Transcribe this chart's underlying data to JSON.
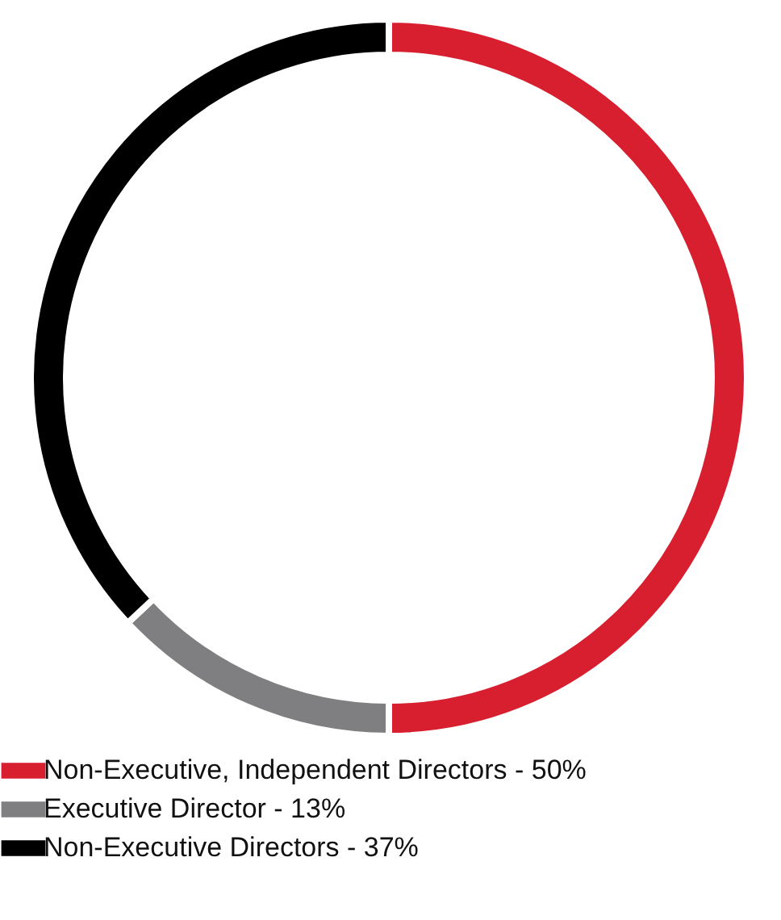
{
  "chart_data": {
    "type": "donut",
    "categories": [
      "Non-Executive, Independent Directors - 50%",
      "Executive Director - 13%",
      "Non-Executive Directors - 37%"
    ],
    "values": [
      50,
      13,
      37
    ],
    "colors": [
      "#d71f2f",
      "#7f7f82",
      "#000000"
    ],
    "legend": "bottom"
  }
}
